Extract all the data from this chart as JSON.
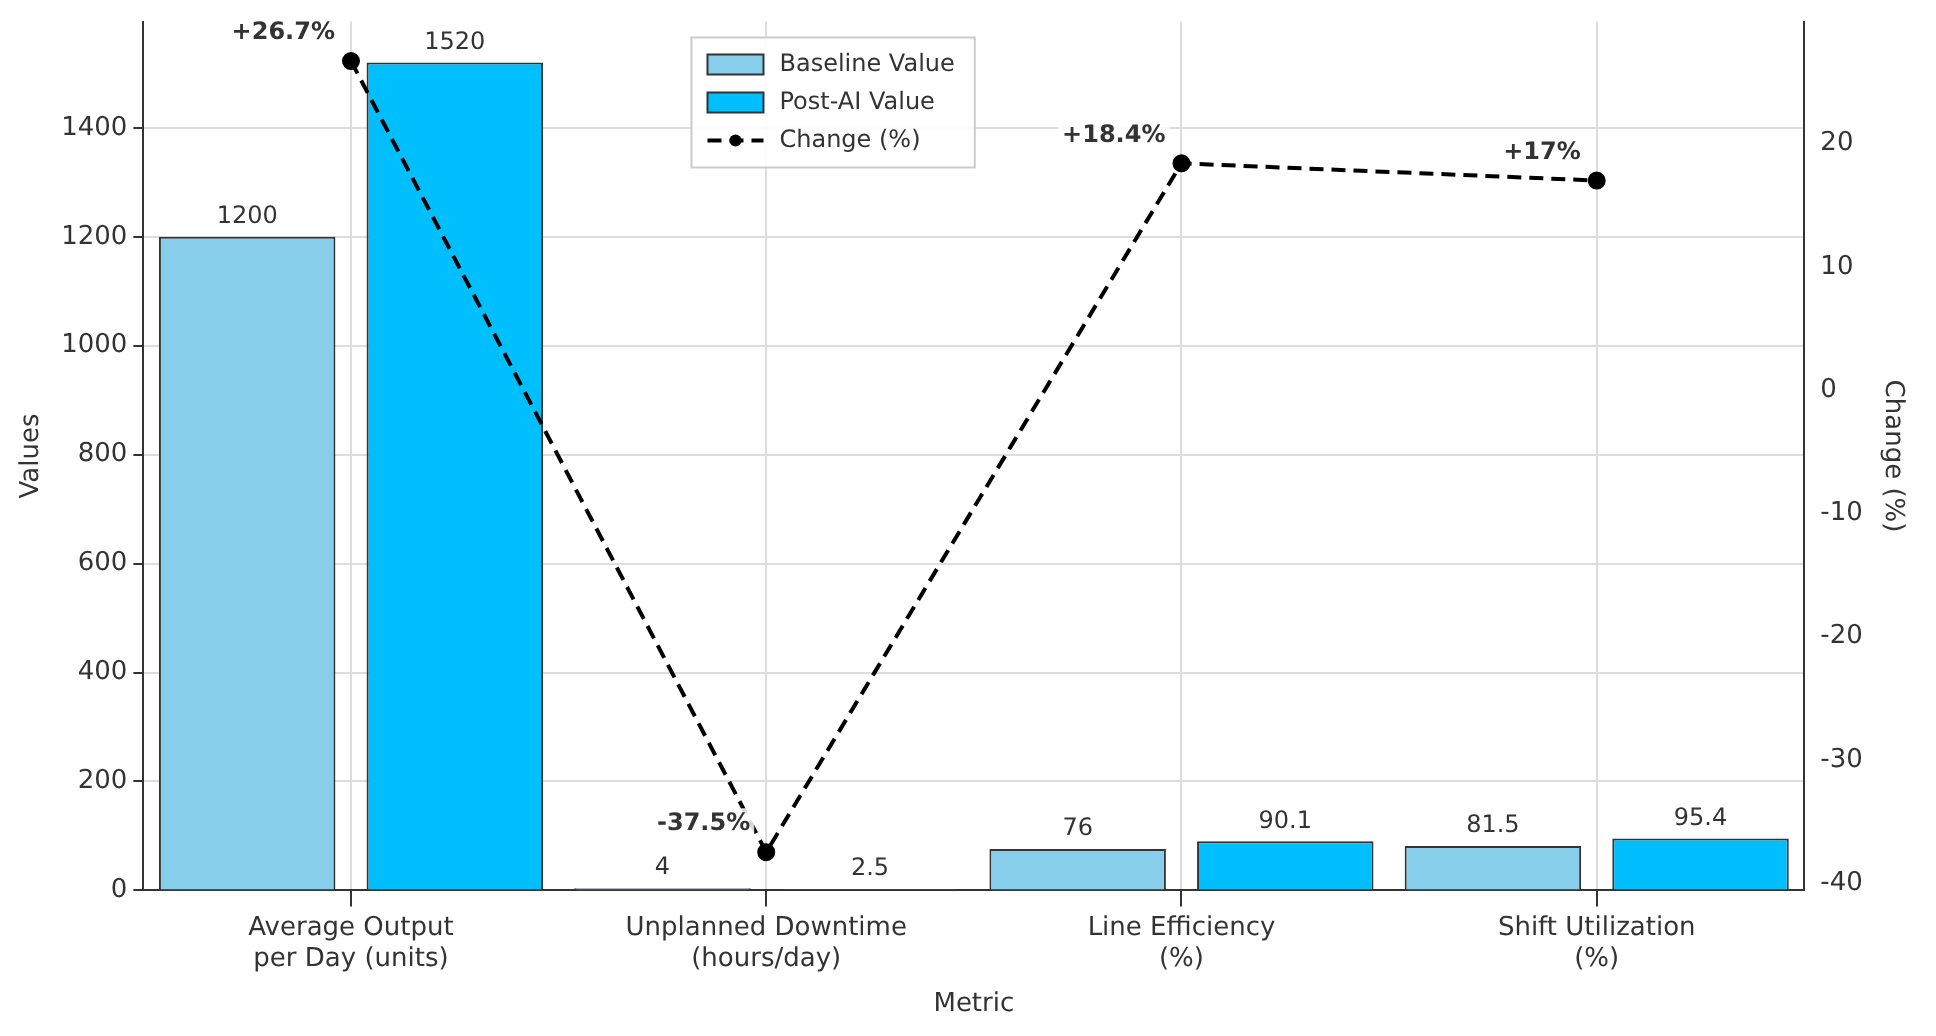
{
  "chart_data": {
    "type": "bar",
    "xlabel": "Metric",
    "ylabel": "Values",
    "y2label": "Change (%)",
    "categories": [
      "Average Output\nper Day (units)",
      "Unplanned Downtime\n(hours/day)",
      "Line Efficiency\n(%)",
      "Shift Utilization\n(%)"
    ],
    "series": [
      {
        "name": "Baseline Value",
        "color": "#87ceeb",
        "values": [
          1200,
          4,
          76,
          81.5
        ],
        "value_labels": [
          "1200",
          "4",
          "76",
          "81.5"
        ]
      },
      {
        "name": "Post-AI Value",
        "color": "#00bfff",
        "values": [
          1520,
          2.5,
          90.1,
          95.4
        ],
        "value_labels": [
          "1520",
          "2.5",
          "90.1",
          "95.4"
        ]
      },
      {
        "name": "Change (%)",
        "type": "line",
        "axis": "y2",
        "color": "#000000",
        "line_style": "dashed",
        "marker": "circle",
        "values": [
          26.7,
          -37.5,
          18.4,
          17
        ],
        "value_labels": [
          "+26.7%",
          "-37.5%",
          "+18.4%",
          "+17%"
        ]
      }
    ],
    "ylim": [
      0,
      1595
    ],
    "yticks": [
      0,
      200,
      400,
      600,
      800,
      1000,
      1200,
      1400
    ],
    "y2lim": [
      -40.6,
      29.9
    ],
    "y2ticks": [
      -40,
      -30,
      -20,
      -10,
      0,
      10,
      20
    ],
    "grid": true,
    "legend": "top"
  }
}
